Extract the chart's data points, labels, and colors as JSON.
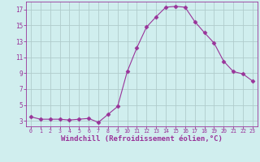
{
  "x": [
    0,
    1,
    2,
    3,
    4,
    5,
    6,
    7,
    8,
    9,
    10,
    11,
    12,
    13,
    14,
    15,
    16,
    17,
    18,
    19,
    20,
    21,
    22,
    23
  ],
  "y": [
    3.5,
    3.2,
    3.2,
    3.2,
    3.1,
    3.2,
    3.3,
    2.8,
    3.8,
    4.8,
    9.2,
    12.2,
    14.8,
    16.1,
    17.3,
    17.4,
    17.3,
    15.5,
    14.1,
    12.8,
    10.5,
    9.2,
    8.9,
    8.0
  ],
  "line_color": "#993399",
  "marker": "D",
  "marker_size": 2.5,
  "bg_color": "#d0eeee",
  "grid_color": "#b0cccc",
  "tick_color": "#993399",
  "label_color": "#993399",
  "xlabel": "Windchill (Refroidissement éolien,°C)",
  "xlabel_fontsize": 6.5,
  "ytick_labels": [
    "3",
    "5",
    "7",
    "9",
    "11",
    "13",
    "15",
    "17"
  ],
  "yticks": [
    3,
    5,
    7,
    9,
    11,
    13,
    15,
    17
  ],
  "xticks": [
    0,
    1,
    2,
    3,
    4,
    5,
    6,
    7,
    8,
    9,
    10,
    11,
    12,
    13,
    14,
    15,
    16,
    17,
    18,
    19,
    20,
    21,
    22,
    23
  ],
  "ylim": [
    2.3,
    18.0
  ],
  "xlim": [
    -0.5,
    23.5
  ]
}
